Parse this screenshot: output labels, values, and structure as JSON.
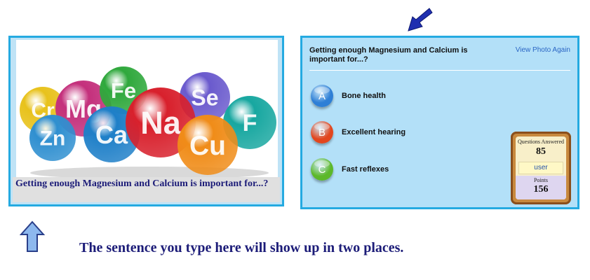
{
  "photo_card": {
    "caption": "Getting enough Magnesium and Calcium is important for...?",
    "elements": [
      {
        "symbol": "Cr",
        "color": "#e8c21c"
      },
      {
        "symbol": "Mg",
        "color": "#c4307c"
      },
      {
        "symbol": "Fe",
        "color": "#2fa83c"
      },
      {
        "symbol": "Se",
        "color": "#6a5acd"
      },
      {
        "symbol": "F",
        "color": "#17a7a0"
      },
      {
        "symbol": "Zn",
        "color": "#2f8fd0"
      },
      {
        "symbol": "Ca",
        "color": "#1e7fc8"
      },
      {
        "symbol": "Na",
        "color": "#d8202c"
      },
      {
        "symbol": "Cu",
        "color": "#f08c18"
      }
    ]
  },
  "quiz_card": {
    "question": "Getting enough Magnesium and Calcium is important for...?",
    "view_photo_link": "View Photo Again",
    "answers": [
      {
        "letter": "A",
        "label": "Bone health",
        "color": "#2e7fd6"
      },
      {
        "letter": "B",
        "label": "Excellent hearing",
        "color": "#e2461e"
      },
      {
        "letter": "C",
        "label": "Fast reflexes",
        "color": "#5cb82a"
      }
    ],
    "score": {
      "questions_answered_label": "Questions Answered",
      "questions_answered": "85",
      "user": "user",
      "points_label": "Points",
      "points": "156"
    }
  },
  "instruction": "The sentence you type here will show up in two places."
}
